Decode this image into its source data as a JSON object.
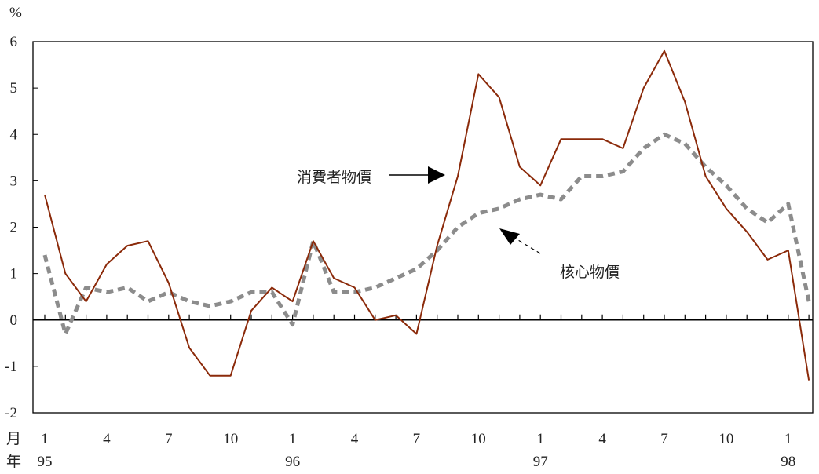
{
  "chart_data": {
    "type": "line",
    "unit_label": "%",
    "x_row_label": "月",
    "year_row_label": "年",
    "x_tick_labels": [
      {
        "index": 0,
        "label": "1"
      },
      {
        "index": 3,
        "label": "4"
      },
      {
        "index": 6,
        "label": "7"
      },
      {
        "index": 9,
        "label": "10"
      },
      {
        "index": 12,
        "label": "1"
      },
      {
        "index": 15,
        "label": "4"
      },
      {
        "index": 18,
        "label": "7"
      },
      {
        "index": 21,
        "label": "10"
      },
      {
        "index": 24,
        "label": "1"
      },
      {
        "index": 27,
        "label": "4"
      },
      {
        "index": 30,
        "label": "7"
      },
      {
        "index": 33,
        "label": "10"
      },
      {
        "index": 36,
        "label": "1"
      }
    ],
    "year_labels": [
      {
        "index": 0,
        "label": "95"
      },
      {
        "index": 12,
        "label": "96"
      },
      {
        "index": 24,
        "label": "97"
      },
      {
        "index": 36,
        "label": "98"
      }
    ],
    "y_ticks": [
      -2,
      -1,
      0,
      1,
      2,
      3,
      4,
      5,
      6
    ],
    "ylim": [
      -2,
      6
    ],
    "grid": false,
    "series": [
      {
        "name": "消費者物價",
        "color": "#8b2a0a",
        "style": "solid",
        "values": [
          2.7,
          1.0,
          0.4,
          1.2,
          1.6,
          1.7,
          0.8,
          -0.6,
          -1.2,
          -1.2,
          0.2,
          0.7,
          0.4,
          1.7,
          0.9,
          0.7,
          0.0,
          0.1,
          -0.3,
          1.6,
          3.1,
          5.3,
          4.8,
          3.3,
          2.9,
          3.9,
          3.9,
          3.9,
          3.7,
          5.0,
          5.8,
          4.7,
          3.1,
          2.4,
          1.9,
          1.3,
          1.5,
          -1.3
        ]
      },
      {
        "name": "核心物價",
        "color": "#8c8c8c",
        "style": "dashed",
        "values": [
          1.4,
          -0.3,
          0.7,
          0.6,
          0.7,
          0.4,
          0.6,
          0.4,
          0.3,
          0.4,
          0.6,
          0.6,
          -0.1,
          1.7,
          0.6,
          0.6,
          0.7,
          0.9,
          1.1,
          1.5,
          2.0,
          2.3,
          2.4,
          2.6,
          2.7,
          2.6,
          3.1,
          3.1,
          3.2,
          3.7,
          4.0,
          3.8,
          3.3,
          2.9,
          2.4,
          2.1,
          2.5,
          0.4
        ]
      }
    ],
    "annotations": [
      {
        "text": "消費者物價",
        "points_to": "消費者物價"
      },
      {
        "text": "核心物價",
        "points_to": "核心物價"
      }
    ]
  }
}
